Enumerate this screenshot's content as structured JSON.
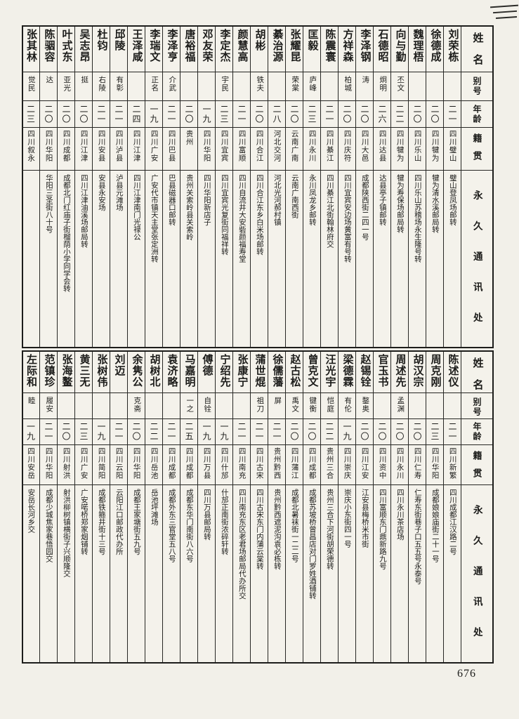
{
  "page": {
    "number": "676"
  },
  "headers": {
    "name": "姓名",
    "alias": "别号",
    "age": "年龄",
    "native": "籍贯",
    "address": "永久通讯处"
  },
  "tables": [
    {
      "people": [
        {
          "name": "刘荣栋",
          "alias": "",
          "age": "二一",
          "native": "四川璧山",
          "address": "璧山登凤场邮转"
        },
        {
          "name": "徐德成",
          "alias": "",
          "age": "二〇",
          "native": "四川犍为",
          "address": "犍为清水溪邮局转"
        },
        {
          "name": "魏理梧",
          "alias": "",
          "age": "二〇",
          "native": "四川乐山",
          "address": "四川乐山苏稽场永生隆号转"
        },
        {
          "name": "向与勤",
          "alias": "丕文",
          "age": "二二",
          "native": "四川犍为",
          "address": "犍为寿保场邮局转"
        },
        {
          "name": "石德昭",
          "alias": "炯明",
          "age": "二六",
          "native": "四川达县",
          "address": "达县亭子镇邮转"
        },
        {
          "name": "李泽钢",
          "alias": "涛",
          "age": "二〇",
          "native": "四川大邑",
          "address": "成都陕西街二四一号"
        },
        {
          "name": "方祥森",
          "alias": "柏城",
          "age": "二〇",
          "native": "四川庆符",
          "address": "四川宜宾安边场黄富有号转"
        },
        {
          "name": "陈震寰",
          "alias": "",
          "age": "二一",
          "native": "四川綦江",
          "address": "四川綦江北街翰林府交"
        },
        {
          "name": "匡毅",
          "alias": "庐峰",
          "age": "二三",
          "native": "四川永川",
          "address": "永川凤龙乡邮转"
        },
        {
          "name": "张耀昆",
          "alias": "荣棠",
          "age": "二〇",
          "native": "云南广南",
          "address": "云南广南西街"
        },
        {
          "name": "綦治源",
          "alias": "",
          "age": "二八",
          "native": "河北交河",
          "address": "河北光河郝村镇"
        },
        {
          "name": "胡彬",
          "alias": "铁夫",
          "age": "二〇",
          "native": "四川合江",
          "address": "四川合江东乡白米场邮转"
        },
        {
          "name": "颜慧高",
          "alias": "",
          "age": "二一",
          "native": "四川富顺",
          "address": "四川自流井大安砦颜福寿堂"
        },
        {
          "name": "李定杰",
          "alias": "宇民",
          "age": "二三",
          "native": "四川宜宾",
          "address": "四川宜宾光复街同福祥转"
        },
        {
          "name": "邓友荣",
          "alias": "",
          "age": "一九",
          "native": "四川华阳",
          "address": "四川华阳新店子"
        },
        {
          "name": "唐裕福",
          "alias": "",
          "age": "二〇",
          "native": "贵州",
          "address": "贵州关索岭县关索岭"
        },
        {
          "name": "李泽亨",
          "alias": "介武",
          "age": "二一",
          "native": "四川巴县",
          "address": "巴县磁器口邮转"
        },
        {
          "name": "李瑞文",
          "alias": "正名",
          "age": "一九",
          "native": "四川广安",
          "address": "广安代市镇天主堂张定洲转"
        },
        {
          "name": "王泽咸",
          "alias": "",
          "age": "二四",
          "native": "四川江津",
          "address": "四川江津南门光禄公"
        },
        {
          "name": "邱陵",
          "alias": "有彰",
          "age": "二一",
          "native": "四川泸县",
          "address": "泸县元滩场"
        },
        {
          "name": "杜钧",
          "alias": "右陵",
          "age": "二一",
          "native": "四川安县",
          "address": "安县永安场"
        },
        {
          "name": "吴志昂",
          "alias": "挺",
          "age": "二〇",
          "native": "四川江津",
          "address": "四川江津油溪场邮局转"
        },
        {
          "name": "叶式东",
          "alias": "亚光",
          "age": "二〇",
          "native": "四川成都",
          "address": "成都北门红庙子街榴荫小学同学会转"
        },
        {
          "name": "陈骃容",
          "alias": "达",
          "age": "二〇",
          "native": "四川华阳",
          "address": "华阳三圣街八十号"
        },
        {
          "name": "张其林",
          "alias": "觉民",
          "age": "二三",
          "native": "四川叙永",
          "address": ""
        }
      ]
    },
    {
      "people": [
        {
          "name": "陈述仪",
          "alias": "",
          "age": "二一",
          "native": "四川新繁",
          "address": "四川成都江汉路二号"
        },
        {
          "name": "周克刚",
          "alias": "",
          "age": "二三",
          "native": "四川华阳",
          "address": "成都娘娘庙街二十一号"
        },
        {
          "name": "胡汉宗",
          "alias": "",
          "age": "二〇",
          "native": "四川仁寿",
          "address": "仁寿东街巷子口五五号永泰号"
        },
        {
          "name": "周述先",
          "alias": "孟渊",
          "age": "二〇",
          "native": "四川永川",
          "address": "四川永川茶店场"
        },
        {
          "name": "官玉书",
          "alias": "",
          "age": "二〇",
          "native": "四川资中",
          "address": "四川富顺东门鼎新路九号"
        },
        {
          "name": "赵锡铨",
          "alias": "鍪奥",
          "age": "二〇",
          "native": "四川江安",
          "address": "江安县梅桥米市街"
        },
        {
          "name": "梁德霖",
          "alias": "有伦",
          "age": "一九",
          "native": "四川崇庆",
          "address": "崇庆小东街四一号"
        },
        {
          "name": "汪光宇",
          "alias": "恺庭",
          "age": "二二",
          "native": "贵州三合",
          "address": "贵州三合下河街胡荣德转"
        },
        {
          "name": "曾克文",
          "alias": "键衡",
          "age": "二〇",
          "native": "四川成都",
          "address": "成都苏坡桥曾昌店对门罗姓酒铺转"
        },
        {
          "name": "赵古松",
          "alias": "禹文",
          "age": "二〇",
          "native": "四川蒲江",
          "address": "成都北暑袜街一二二号"
        },
        {
          "name": "徐儒藩",
          "alias": "屏",
          "age": "二一",
          "native": "贵州黔西",
          "address": "贵州黔西遮泥沟袁必栋转"
        },
        {
          "name": "蒲世焜",
          "alias": "祖刀",
          "age": "二一",
          "native": "四川古宋",
          "address": "四川古宋东门内蒲云棠转"
        },
        {
          "name": "张康宁",
          "alias": "",
          "age": "二一",
          "native": "四川南充",
          "address": "四川南充东区老君场邮局代办所交"
        },
        {
          "name": "宁绍先",
          "alias": "",
          "age": "一九",
          "native": "四川什邡",
          "address": "什邡正南街浓碎轩转"
        },
        {
          "name": "傅德",
          "alias": "自铨",
          "age": "一九",
          "native": "四川万县",
          "address": "四川万县邮局转"
        },
        {
          "name": "马嘉明",
          "alias": "一之",
          "age": "二五",
          "native": "四川成都",
          "address": "成都东华门南街八六号"
        },
        {
          "name": "袁济略",
          "alias": "",
          "age": "二一",
          "native": "四川成都",
          "address": "成都外东三官堂五八号"
        },
        {
          "name": "胡树北",
          "alias": "",
          "age": "二二",
          "native": "四川岳池",
          "address": "岳池坪滩场"
        },
        {
          "name": "余隽公",
          "alias": "克斋",
          "age": "二〇",
          "native": "四川华阳",
          "address": "成都王家塘街五九号"
        },
        {
          "name": "刘迈",
          "alias": "",
          "age": "二一",
          "native": "四川云阳",
          "address": "云阳江口邮政代办所"
        },
        {
          "name": "张树伟",
          "alias": "",
          "age": "一九",
          "native": "四川简阳",
          "address": "成都铁箍井街十三号"
        },
        {
          "name": "黄三无",
          "alias": "",
          "age": "二三",
          "native": "四川广安",
          "address": "广安喏桥郑家烟铺转"
        },
        {
          "name": "张海鳌",
          "alias": "",
          "age": "二〇",
          "native": "四川射洪",
          "address": "射洪柳树镇横街子兴顺隆交"
        },
        {
          "name": "范镇珍",
          "alias": "履安",
          "age": "二一",
          "native": "四川华阳",
          "address": "成都少城焦家巷悟园交"
        },
        {
          "name": "左际和",
          "alias": "睦",
          "age": "一九",
          "native": "四川安岳",
          "address": "安岳长河乡交"
        }
      ]
    }
  ]
}
